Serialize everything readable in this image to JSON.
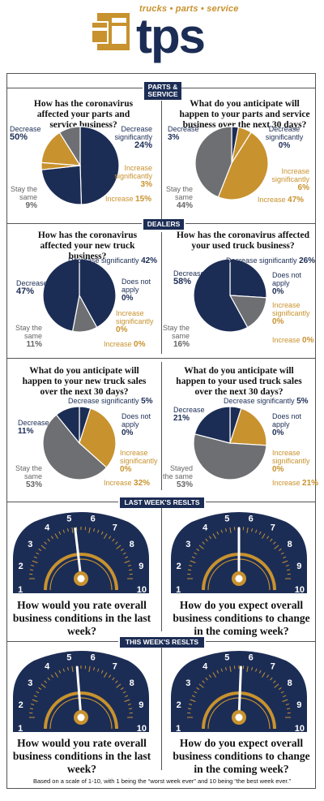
{
  "header": {
    "tagline": "trucks • parts • service",
    "brand": "tps"
  },
  "colors": {
    "navy": "#1c2d55",
    "gold": "#c8922e",
    "gray": "#6e6f72",
    "white": "#ffffff"
  },
  "sections": {
    "parts_service": "PARTS & SERVICE",
    "dealers": "DEALERS",
    "last_week": "LAST WEEK'S RESLTS",
    "this_week": "THIS WEEK'S RESLTS"
  },
  "questions": {
    "q1": "How has the coronavirus affected your parts and service business?",
    "q2": "What do you anticipate will happen to your parts and service business over the next 30 days?",
    "q3": "How has the coronavirus affected your new truck business?",
    "q4": "How has the coronavirus affected your used truck business?",
    "q5": "What do you anticipate will happen to your new truck sales over the next 30 days?",
    "q6": "What do you anticipate will happen to your used truck sales over the next 30 days?",
    "g1": "How would you rate overall business conditions in the last week?",
    "g2": "How do you expect overall business conditions to change in the coming week?"
  },
  "chart_data": [
    {
      "type": "pie",
      "id": "pie1",
      "slices": [
        {
          "label": "Decrease",
          "value": 50,
          "display": "50%",
          "color": "navy"
        },
        {
          "label": "Decrease significantly",
          "value": 24,
          "display": "24%",
          "color": "navy"
        },
        {
          "label": "Increase significantly",
          "value": 3,
          "display": "3%",
          "color": "gold"
        },
        {
          "label": "Increase",
          "value": 15,
          "display": "15%",
          "color": "gold"
        },
        {
          "label": "Stay the same",
          "value": 9,
          "display": "9%",
          "color": "gray"
        }
      ]
    },
    {
      "type": "pie",
      "id": "pie2",
      "slices": [
        {
          "label": "Decrease",
          "value": 3,
          "display": "3%",
          "color": "navy"
        },
        {
          "label": "Decrease significantly",
          "value": 0,
          "display": "0%",
          "color": "navy"
        },
        {
          "label": "Increase significantly",
          "value": 6,
          "display": "6%",
          "color": "gold"
        },
        {
          "label": "Increase",
          "value": 47,
          "display": "47%",
          "color": "gold"
        },
        {
          "label": "Stay the same",
          "value": 44,
          "display": "44%",
          "color": "gray"
        }
      ]
    },
    {
      "type": "pie",
      "id": "pie3",
      "slices": [
        {
          "label": "Decrease significantly",
          "value": 42,
          "display": "42%",
          "color": "navy"
        },
        {
          "label": "Does not apply",
          "value": 0,
          "display": "0%",
          "color": "navy"
        },
        {
          "label": "Increase significantly",
          "value": 0,
          "display": "0%",
          "color": "gold"
        },
        {
          "label": "Increase",
          "value": 0,
          "display": "0%",
          "color": "gold"
        },
        {
          "label": "Stay the same",
          "value": 11,
          "display": "11%",
          "color": "gray"
        },
        {
          "label": "Decrease",
          "value": 47,
          "display": "47%",
          "color": "navy"
        }
      ]
    },
    {
      "type": "pie",
      "id": "pie4",
      "slices": [
        {
          "label": "Decrease significantly",
          "value": 26,
          "display": "26%",
          "color": "navy"
        },
        {
          "label": "Does not apply",
          "value": 0,
          "display": "0%",
          "color": "navy"
        },
        {
          "label": "Increase significantly",
          "value": 0,
          "display": "0%",
          "color": "gold"
        },
        {
          "label": "Increase",
          "value": 0,
          "display": "0%",
          "color": "gold"
        },
        {
          "label": "Stay the same",
          "value": 16,
          "display": "16%",
          "color": "gray"
        },
        {
          "label": "Decrease",
          "value": 58,
          "display": "58%",
          "color": "navy"
        }
      ]
    },
    {
      "type": "pie",
      "id": "pie5",
      "slices": [
        {
          "label": "Decrease significantly",
          "value": 5,
          "display": "5%",
          "color": "navy"
        },
        {
          "label": "Does not apply",
          "value": 0,
          "display": "0%",
          "color": "navy"
        },
        {
          "label": "Increase significantly",
          "value": 0,
          "display": "0%",
          "color": "gold"
        },
        {
          "label": "Increase",
          "value": 32,
          "display": "32%",
          "color": "gold"
        },
        {
          "label": "Stay the same",
          "value": 53,
          "display": "53%",
          "color": "gray"
        },
        {
          "label": "Decrease",
          "value": 11,
          "display": "11%",
          "color": "navy"
        }
      ]
    },
    {
      "type": "pie",
      "id": "pie6",
      "slices": [
        {
          "label": "Decrease significantly",
          "value": 5,
          "display": "5%",
          "color": "navy"
        },
        {
          "label": "Does not apply",
          "value": 0,
          "display": "0%",
          "color": "navy"
        },
        {
          "label": "Increase significantly",
          "value": 0,
          "display": "0%",
          "color": "gold"
        },
        {
          "label": "Increase",
          "value": 21,
          "display": "21%",
          "color": "gold"
        },
        {
          "label": "Stayed the same",
          "value": 53,
          "display": "53%",
          "color": "gray"
        },
        {
          "label": "Decrease",
          "value": 21,
          "display": "21%",
          "color": "navy"
        }
      ]
    },
    {
      "type": "gauge",
      "id": "gauge1",
      "scale": [
        1,
        10
      ],
      "ticks": [
        "1",
        "2",
        "3",
        "4",
        "5",
        "6",
        "7",
        "8",
        "9",
        "10"
      ],
      "value": 5.2
    },
    {
      "type": "gauge",
      "id": "gauge2",
      "scale": [
        1,
        10
      ],
      "ticks": [
        "1",
        "2",
        "3",
        "4",
        "5",
        "6",
        "7",
        "8",
        "9",
        "10"
      ],
      "value": 5.5
    },
    {
      "type": "gauge",
      "id": "gauge3",
      "scale": [
        1,
        10
      ],
      "ticks": [
        "1",
        "2",
        "3",
        "4",
        "5",
        "6",
        "7",
        "8",
        "9",
        "10"
      ],
      "value": 5.3
    },
    {
      "type": "gauge",
      "id": "gauge4",
      "scale": [
        1,
        10
      ],
      "ticks": [
        "1",
        "2",
        "3",
        "4",
        "5",
        "6",
        "7",
        "8",
        "9",
        "10"
      ],
      "value": 5.6
    }
  ],
  "labels": {
    "p1": {
      "dec": "Decrease",
      "dec_v": "50%",
      "decsig": "Decrease significantly",
      "decsig_v": "24%",
      "incsig": "Increase significantly",
      "incsig_v": "3%",
      "inc": "Increase",
      "inc_v": "15%",
      "same": "Stay the same",
      "same_v": "9%"
    },
    "p2": {
      "dec": "Decrease",
      "dec_v": "3%",
      "decsig": "Decrease significantly",
      "decsig_v": "0%",
      "incsig": "Increase significantly",
      "incsig_v": "6%",
      "inc": "Increase",
      "inc_v": "47%",
      "same": "Stay the same",
      "same_v": "44%"
    },
    "p3": {
      "dec": "Decrease",
      "dec_v": "47%",
      "decsig": "Decrease significantly",
      "decsig_v": "42%",
      "dna": "Does not apply",
      "dna_v": "0%",
      "incsig": "Increase significantly",
      "incsig_v": "0%",
      "inc": "Increase",
      "inc_v": "0%",
      "same": "Stay the same",
      "same_v": "11%"
    },
    "p4": {
      "dec": "Decrease",
      "dec_v": "58%",
      "decsig": "Decrease significantly",
      "decsig_v": "26%",
      "dna": "Does not apply",
      "dna_v": "0%",
      "incsig": "Increase significantly",
      "incsig_v": "0%",
      "inc": "Increase",
      "inc_v": "0%",
      "same": "Stay the same",
      "same_v": "16%"
    },
    "p5": {
      "dec": "Decrease",
      "dec_v": "11%",
      "decsig": "Decrease significantly",
      "decsig_v": "5%",
      "dna": "Does not apply",
      "dna_v": "0%",
      "incsig": "Increase significantly",
      "incsig_v": "0%",
      "inc": "Increase",
      "inc_v": "32%",
      "same": "Stay the same",
      "same_v": "53%"
    },
    "p6": {
      "dec": "Decrease",
      "dec_v": "21%",
      "decsig": "Decrease significantly",
      "decsig_v": "5%",
      "dna": "Does not apply",
      "dna_v": "0%",
      "incsig": "Increase significantly",
      "incsig_v": "0%",
      "inc": "Increase",
      "inc_v": "21%",
      "same": "Stayed the same",
      "same_v": "53%"
    }
  },
  "footnote": "Based on a scale of 1-10, with 1 being the “worst week ever” and 10 being “the best week ever.”"
}
